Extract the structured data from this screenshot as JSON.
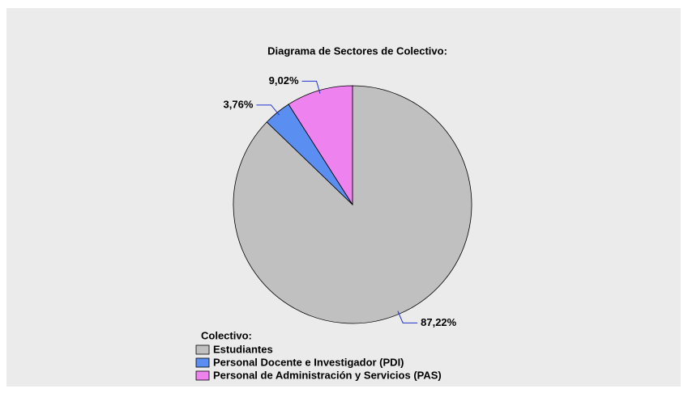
{
  "chart_data": {
    "type": "pie",
    "title": "Diagrama de Sectores de Colectivo:",
    "categories": [
      "Estudiantes",
      "Personal Docente e Investigador (PDI)",
      "Personal de Administración y Servicios (PAS)"
    ],
    "values": [
      87.22,
      3.76,
      9.02
    ],
    "value_labels": [
      "87,22%",
      "3,76%",
      "9,02%"
    ],
    "colors": [
      "#c0c0c0",
      "#5a8ef0",
      "#ee82ee"
    ],
    "legend_title": "Colectivo:"
  }
}
